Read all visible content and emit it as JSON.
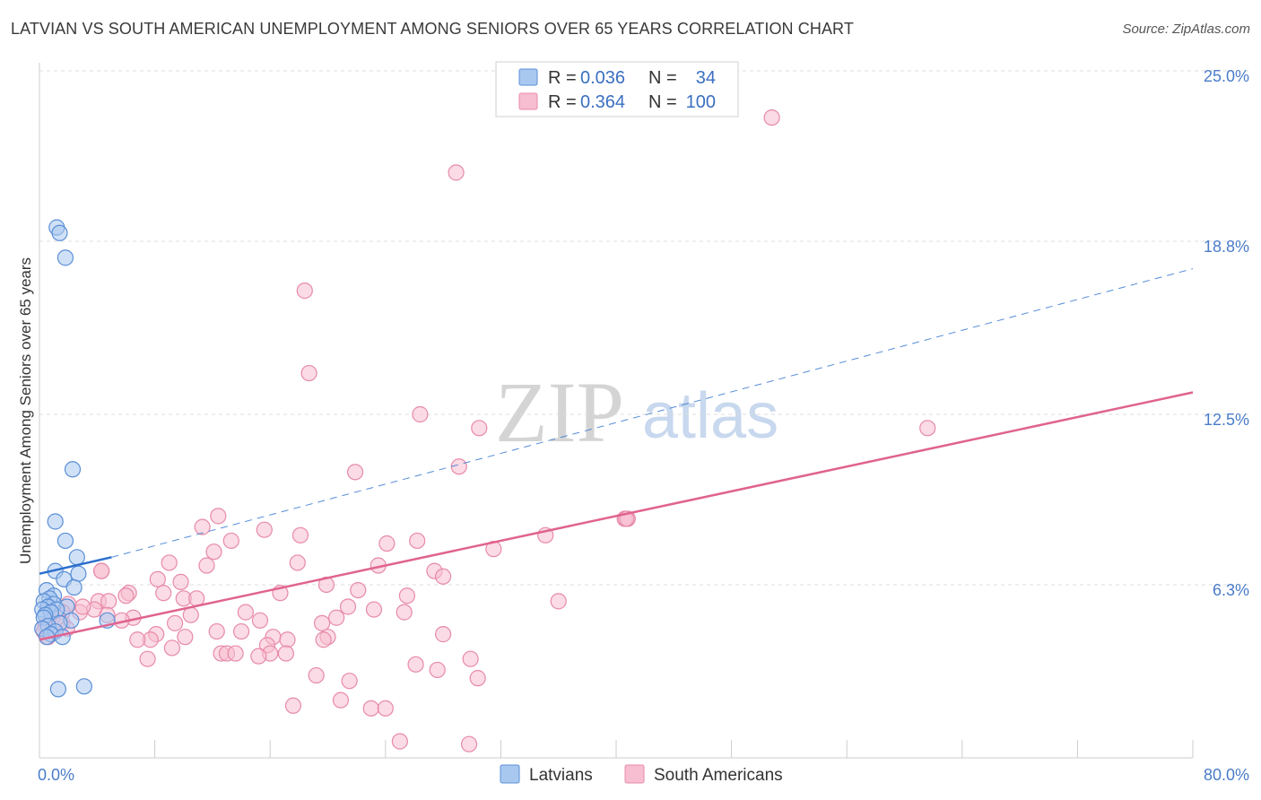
{
  "header": {
    "title": "LATVIAN VS SOUTH AMERICAN UNEMPLOYMENT AMONG SENIORS OVER 65 YEARS CORRELATION CHART",
    "source": "Source: ZipAtlas.com"
  },
  "watermark": {
    "zip": "ZIP",
    "atlas": "atlas"
  },
  "colors": {
    "latvians_fill": "#a9c8f0",
    "latvians_stroke": "#5b8fd6",
    "latvians_line": "#2c6fce",
    "south_fill": "#f7bdd0",
    "south_stroke": "#e78aa9",
    "south_line": "#e0638f",
    "grid": "#dddddd",
    "axis": "#cccccc"
  },
  "legend": {
    "rows": [
      {
        "r_label": "R =",
        "r_value": "0.036",
        "n_label": "N =",
        "n_value": "34"
      },
      {
        "r_label": "R =",
        "r_value": "0.364",
        "n_label": "N =",
        "n_value": "100"
      }
    ]
  },
  "chart_data": {
    "type": "scatter",
    "title": "LATVIAN VS SOUTH AMERICAN UNEMPLOYMENT AMONG SENIORS OVER 65 YEARS CORRELATION CHART",
    "xlabel": "",
    "ylabel": "Unemployment Among Seniors over 65 years",
    "xlim": [
      0,
      80
    ],
    "ylim": [
      0,
      25
    ],
    "x_tick_labels": [
      "0.0%",
      "80.0%"
    ],
    "y_ticks": [
      6.3,
      12.5,
      18.8,
      25.0
    ],
    "y_tick_labels": [
      "6.3%",
      "12.5%",
      "18.8%",
      "25.0%"
    ],
    "series": [
      {
        "name": "Latvians",
        "r": 0.036,
        "n": 34,
        "trend": {
          "x_start": 0.0,
          "y_start": 6.7,
          "x_solid_end": 5.0,
          "y_solid_end": 7.3,
          "x_end": 80.0,
          "y_end": 17.8
        },
        "points": [
          [
            1.2,
            19.3
          ],
          [
            1.4,
            19.1
          ],
          [
            1.8,
            18.2
          ],
          [
            2.3,
            10.5
          ],
          [
            1.1,
            8.6
          ],
          [
            1.8,
            7.9
          ],
          [
            2.6,
            7.3
          ],
          [
            1.1,
            6.8
          ],
          [
            2.7,
            6.7
          ],
          [
            1.7,
            6.5
          ],
          [
            2.4,
            6.2
          ],
          [
            0.5,
            6.1
          ],
          [
            1.0,
            5.9
          ],
          [
            0.7,
            5.8
          ],
          [
            0.3,
            5.7
          ],
          [
            1.0,
            5.6
          ],
          [
            1.9,
            5.5
          ],
          [
            0.6,
            5.5
          ],
          [
            0.2,
            5.4
          ],
          [
            1.2,
            5.4
          ],
          [
            0.8,
            5.3
          ],
          [
            0.4,
            5.2
          ],
          [
            0.3,
            5.1
          ],
          [
            2.2,
            5.0
          ],
          [
            4.7,
            5.0
          ],
          [
            1.4,
            4.9
          ],
          [
            0.6,
            4.8
          ],
          [
            0.2,
            4.7
          ],
          [
            1.1,
            4.6
          ],
          [
            0.8,
            4.5
          ],
          [
            0.5,
            4.4
          ],
          [
            1.6,
            4.4
          ],
          [
            1.3,
            2.5
          ],
          [
            3.1,
            2.6
          ]
        ]
      },
      {
        "name": "South Americans",
        "r": 0.364,
        "n": 100,
        "trend": {
          "x_start": 0.0,
          "y_start": 4.3,
          "x_end": 80.0,
          "y_end": 13.3
        },
        "points": [
          [
            50.8,
            23.3
          ],
          [
            28.9,
            21.3
          ],
          [
            18.4,
            17.0
          ],
          [
            18.7,
            14.0
          ],
          [
            26.4,
            12.5
          ],
          [
            30.5,
            12.0
          ],
          [
            61.6,
            12.0
          ],
          [
            21.9,
            10.4
          ],
          [
            29.1,
            10.6
          ],
          [
            12.4,
            8.8
          ],
          [
            40.6,
            8.7
          ],
          [
            40.8,
            8.7
          ],
          [
            11.3,
            8.4
          ],
          [
            15.6,
            8.3
          ],
          [
            18.1,
            8.1
          ],
          [
            35.1,
            8.1
          ],
          [
            13.3,
            7.9
          ],
          [
            24.1,
            7.8
          ],
          [
            26.2,
            7.9
          ],
          [
            12.1,
            7.5
          ],
          [
            9.0,
            7.1
          ],
          [
            11.6,
            7.0
          ],
          [
            17.9,
            7.1
          ],
          [
            23.5,
            7.0
          ],
          [
            27.4,
            6.8
          ],
          [
            28.0,
            6.6
          ],
          [
            4.3,
            6.8
          ],
          [
            8.2,
            6.5
          ],
          [
            19.9,
            6.3
          ],
          [
            22.1,
            6.1
          ],
          [
            16.7,
            6.0
          ],
          [
            25.5,
            5.9
          ],
          [
            6.2,
            6.0
          ],
          [
            6.0,
            5.9
          ],
          [
            8.6,
            6.0
          ],
          [
            10.0,
            5.8
          ],
          [
            10.9,
            5.8
          ],
          [
            4.1,
            5.7
          ],
          [
            4.8,
            5.7
          ],
          [
            36.0,
            5.7
          ],
          [
            21.4,
            5.5
          ],
          [
            14.3,
            5.3
          ],
          [
            23.2,
            5.4
          ],
          [
            25.3,
            5.3
          ],
          [
            20.6,
            5.1
          ],
          [
            3.8,
            5.4
          ],
          [
            2.8,
            5.3
          ],
          [
            4.7,
            5.2
          ],
          [
            6.5,
            5.1
          ],
          [
            10.5,
            5.2
          ],
          [
            15.3,
            5.0
          ],
          [
            19.6,
            4.9
          ],
          [
            9.4,
            4.9
          ],
          [
            5.7,
            5.0
          ],
          [
            3.0,
            5.5
          ],
          [
            2.0,
            5.6
          ],
          [
            1.6,
            5.3
          ],
          [
            0.6,
            5.5
          ],
          [
            0.9,
            5.1
          ],
          [
            1.6,
            4.9
          ],
          [
            1.9,
            4.7
          ],
          [
            0.4,
            4.8
          ],
          [
            0.3,
            4.6
          ],
          [
            0.6,
            4.4
          ],
          [
            14.0,
            4.6
          ],
          [
            12.3,
            4.6
          ],
          [
            10.1,
            4.4
          ],
          [
            8.1,
            4.5
          ],
          [
            28.0,
            4.5
          ],
          [
            7.7,
            4.3
          ],
          [
            6.8,
            4.3
          ],
          [
            16.2,
            4.4
          ],
          [
            17.2,
            4.3
          ],
          [
            20.0,
            4.4
          ],
          [
            19.7,
            4.3
          ],
          [
            15.8,
            4.1
          ],
          [
            12.6,
            3.8
          ],
          [
            13.0,
            3.8
          ],
          [
            13.6,
            3.8
          ],
          [
            16.0,
            3.8
          ],
          [
            17.1,
            3.8
          ],
          [
            15.2,
            3.7
          ],
          [
            9.2,
            4.0
          ],
          [
            7.5,
            3.6
          ],
          [
            29.9,
            3.6
          ],
          [
            26.1,
            3.4
          ],
          [
            27.6,
            3.2
          ],
          [
            19.2,
            3.0
          ],
          [
            30.4,
            2.9
          ],
          [
            21.5,
            2.8
          ],
          [
            20.9,
            2.1
          ],
          [
            17.6,
            1.9
          ],
          [
            23.0,
            1.8
          ],
          [
            24.0,
            1.8
          ],
          [
            25.0,
            0.6
          ],
          [
            29.8,
            0.5
          ],
          [
            4.3,
            6.8
          ],
          [
            40.7,
            8.7
          ],
          [
            31.5,
            7.6
          ],
          [
            9.8,
            6.4
          ]
        ]
      }
    ]
  },
  "bottom_legend": {
    "items": [
      {
        "label": "Latvians"
      },
      {
        "label": "South Americans"
      }
    ]
  }
}
